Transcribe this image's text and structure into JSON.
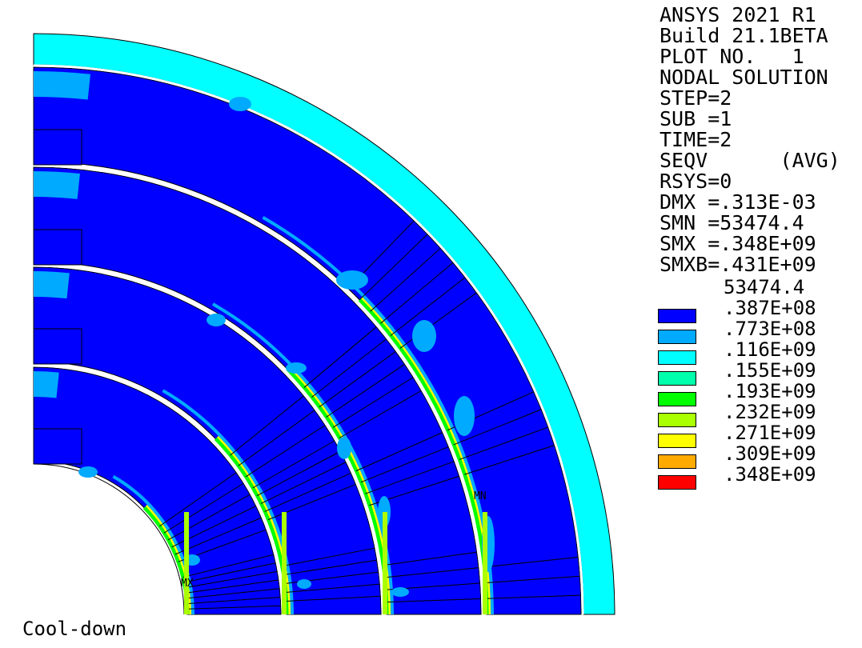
{
  "info": [
    "ANSYS 2021 R1",
    "Build 21.1BETA",
    "PLOT NO.   1",
    "NODAL SOLUTION",
    "STEP=2",
    "SUB =1",
    "TIME=2",
    "SEQV      (AVG)",
    "RSYS=0",
    "DMX =.313E-03",
    "SMN =53474.4",
    "SMX =.348E+09",
    "SMXB=.431E+09"
  ],
  "legend": [
    {
      "label": "53474.4",
      "color": null
    },
    {
      "label": ".387E+08",
      "color": "#0000ff"
    },
    {
      "label": ".773E+08",
      "color": "#00aaff"
    },
    {
      "label": ".116E+09",
      "color": "#00ffff"
    },
    {
      "label": ".155E+09",
      "color": "#00ffaa"
    },
    {
      "label": ".193E+09",
      "color": "#00ff00"
    },
    {
      "label": ".232E+09",
      "color": "#aaff00"
    },
    {
      "label": ".271E+09",
      "color": "#ffff00"
    },
    {
      "label": ".309E+09",
      "color": "#ffaa00"
    },
    {
      "label": ".348E+09",
      "color": "#ff0000"
    }
  ],
  "caption": "Cool-down",
  "markers": {
    "mn": "MN",
    "mx": "MX"
  },
  "colors": {
    "band1": "#0000ff",
    "band2": "#00aaff",
    "band3": "#00ffff",
    "band5": "#00ff00",
    "band6": "#aaff00",
    "band7": "#ffff00"
  }
}
